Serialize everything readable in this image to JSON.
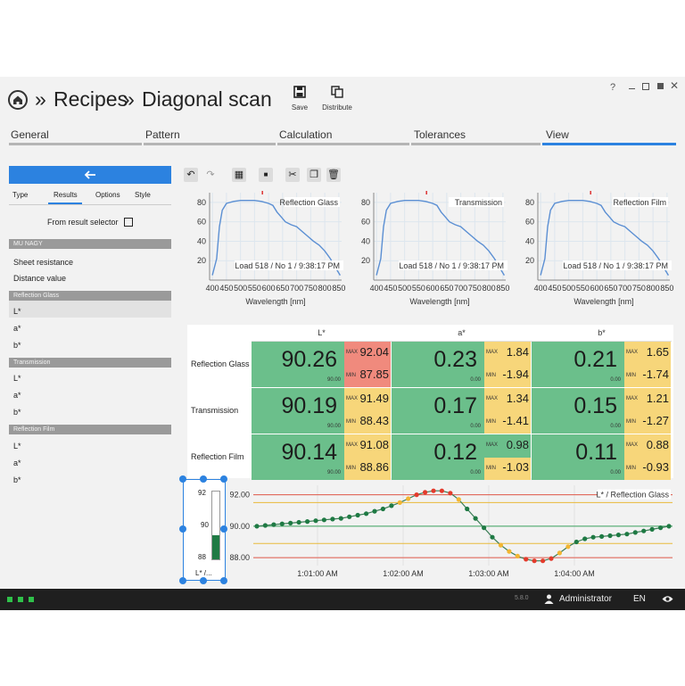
{
  "header": {
    "home_icon": "home-icon",
    "separator": "»",
    "crumb1": "Recipes",
    "crumb2": "Diagonal scan",
    "save_label": "Save",
    "distribute_label": "Distribute",
    "help": "?"
  },
  "tabs": [
    {
      "label": "General"
    },
    {
      "label": "Pattern"
    },
    {
      "label": "Calculation"
    },
    {
      "label": "Tolerances"
    },
    {
      "label": "View"
    }
  ],
  "sidebar": {
    "back_icon": "arrow-left-icon",
    "subtabs": [
      "Type",
      "Results",
      "Options",
      "Style"
    ],
    "from_result": "From result selector",
    "user": "MU NAGY",
    "general_items": [
      "Sheet resistance",
      "Distance value"
    ],
    "sections": [
      {
        "title": "Reflection Glass",
        "items": [
          "L*",
          "a*",
          "b*"
        ]
      },
      {
        "title": "Transmission",
        "items": [
          "L*",
          "a*",
          "b*"
        ]
      },
      {
        "title": "Reflection Film",
        "items": [
          "L*",
          "a*",
          "b*"
        ]
      }
    ]
  },
  "spectra": {
    "xlabel": "Wavelength [nm]",
    "x_ticks": [
      "400",
      "450",
      "500",
      "550",
      "600",
      "650",
      "700",
      "750",
      "800",
      "850"
    ],
    "y_ticks": [
      "80",
      "60",
      "40",
      "20"
    ],
    "charts": [
      {
        "title": "Reflection Glass",
        "info": "Load 518 / No 1 / 9:38:17 PM"
      },
      {
        "title": "Transmission",
        "info": "Load 518 / No 1 / 9:38:17 PM"
      },
      {
        "title": "Reflection Film",
        "info": "Load 518 / No 1 / 9:38:17 PM"
      }
    ]
  },
  "table": {
    "columns": [
      "L*",
      "a*",
      "b*"
    ],
    "max_label": "MAX",
    "min_label": "MIN",
    "rows": [
      {
        "label": "Reflection Glass",
        "cells": [
          {
            "value": "90.26",
            "target": "90.00",
            "max": "92.04",
            "min": "87.85",
            "box": "red"
          },
          {
            "value": "0.23",
            "target": "0.00",
            "max": "1.84",
            "min": "-1.94",
            "box": "yellow"
          },
          {
            "value": "0.21",
            "target": "0.00",
            "max": "1.65",
            "min": "-1.74",
            "box": "yellow"
          }
        ]
      },
      {
        "label": "Transmission",
        "cells": [
          {
            "value": "90.19",
            "target": "90.00",
            "max": "91.49",
            "min": "88.43",
            "box": "yellow"
          },
          {
            "value": "0.17",
            "target": "0.00",
            "max": "1.34",
            "min": "-1.41",
            "box": "yellow"
          },
          {
            "value": "0.15",
            "target": "0.00",
            "max": "1.21",
            "min": "-1.27",
            "box": "yellow"
          }
        ]
      },
      {
        "label": "Reflection Film",
        "cells": [
          {
            "value": "90.14",
            "target": "90.00",
            "max": "91.08",
            "min": "88.86",
            "box": "yellow"
          },
          {
            "value": "0.12",
            "target": "0.00",
            "max": "0.98",
            "min": "-1.03",
            "box": "split"
          },
          {
            "value": "0.11",
            "target": "0.00",
            "max": "0.88",
            "min": "-0.93",
            "box": "yellow"
          }
        ]
      }
    ]
  },
  "gauge": {
    "max": "92",
    "mid": "90",
    "min": "88",
    "label": "L* /...",
    "value": 89.4
  },
  "chart_data": {
    "type": "line",
    "title": "L* / Reflection Glass",
    "y_ticks": [
      "92.00",
      "90.00",
      "88.00"
    ],
    "x_ticks": [
      "1:01:00 AM",
      "1:02:00 AM",
      "1:03:00 AM",
      "1:04:00 AM"
    ],
    "ylim": [
      87.5,
      92.6
    ],
    "limits": {
      "red": [
        92.0,
        88.0
      ],
      "yellow": [
        91.5,
        88.9
      ],
      "target": 90.0
    },
    "series": [
      {
        "values": [
          90.0,
          90.05,
          90.1,
          90.15,
          90.2,
          90.25,
          90.3,
          90.35,
          90.4,
          90.45,
          90.5,
          90.6,
          90.7,
          90.8,
          90.95,
          91.1,
          91.3,
          91.5,
          91.75,
          92.0,
          92.15,
          92.25,
          92.25,
          92.1,
          91.7,
          91.1,
          90.5,
          89.9,
          89.3,
          88.8,
          88.4,
          88.1,
          87.9,
          87.8,
          87.8,
          87.95,
          88.3,
          88.7,
          89.0,
          89.2,
          89.3,
          89.35,
          89.4,
          89.45,
          89.5,
          89.6,
          89.7,
          89.8,
          89.9,
          90.0
        ]
      }
    ]
  },
  "footer": {
    "version": "5.8.0",
    "user": "Administrator",
    "lang": "EN",
    "status_dots": 3
  }
}
